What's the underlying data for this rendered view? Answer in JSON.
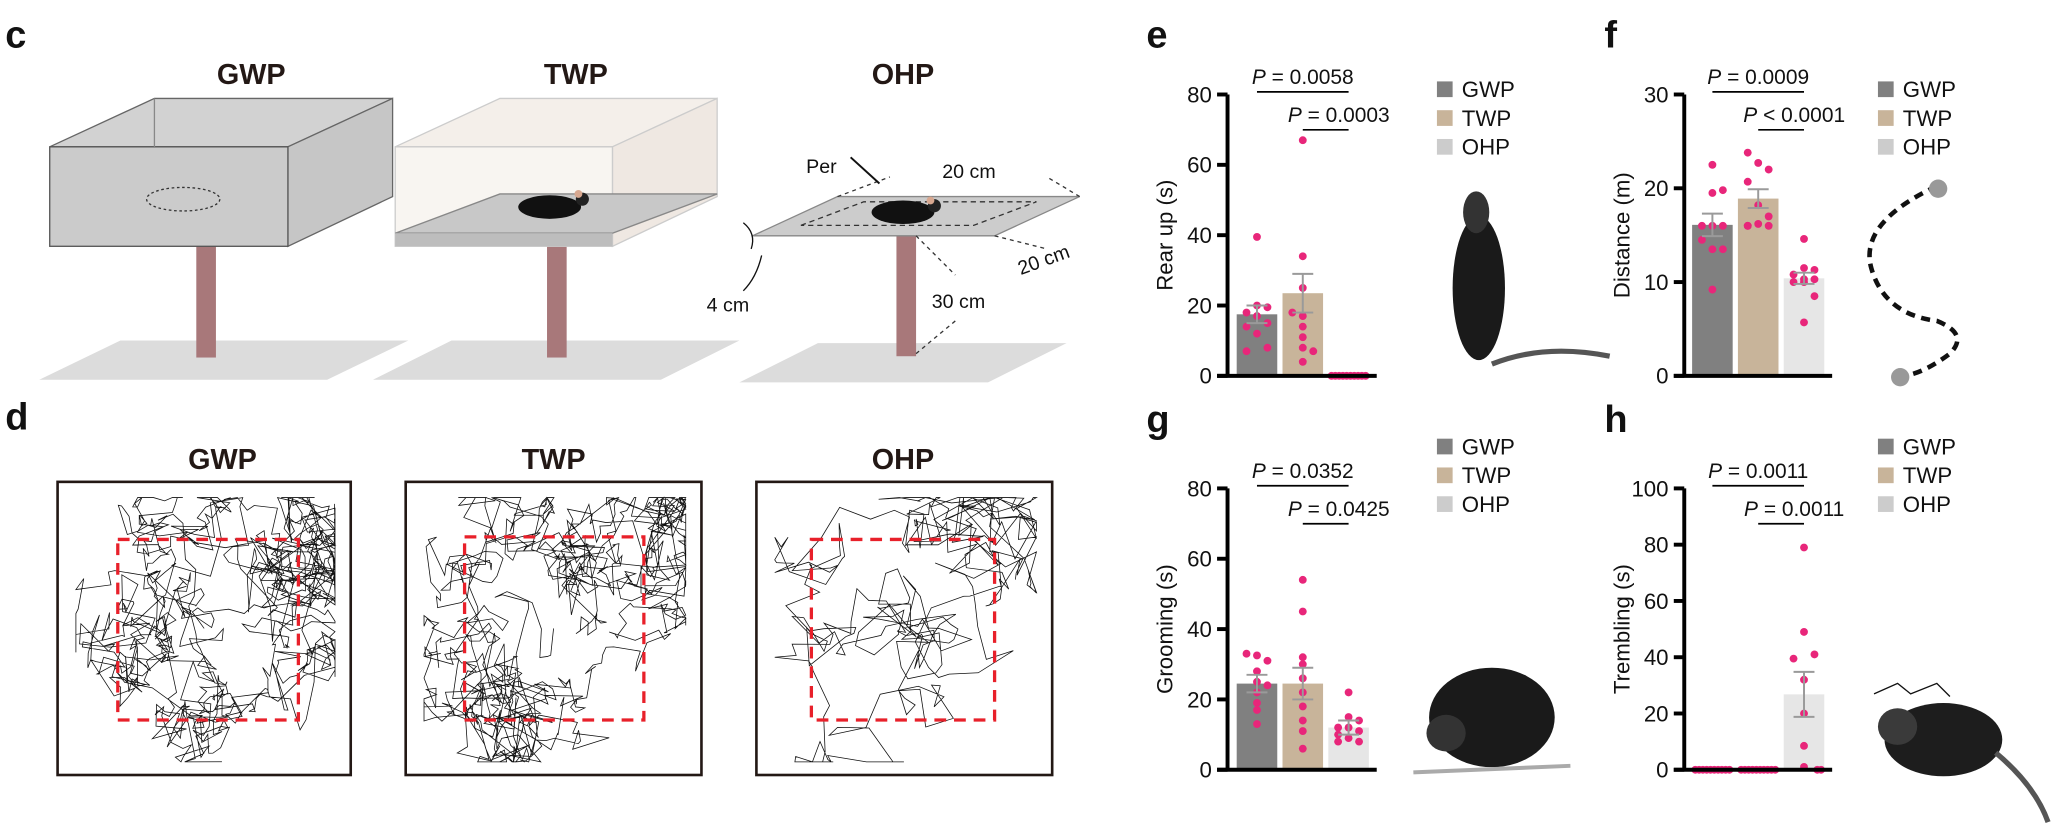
{
  "panel_labels": {
    "c": "c",
    "d": "d",
    "e": "e",
    "f": "f",
    "g": "g",
    "h": "h"
  },
  "panel_c": {
    "titles": [
      "GWP",
      "TWP",
      "OHP"
    ],
    "dimensions": {
      "per": "Per",
      "width": "20 cm",
      "depth": "20 cm",
      "edge": "4 cm",
      "height": "30 cm"
    }
  },
  "panel_d": {
    "titles": [
      "GWP",
      "TWP",
      "OHP"
    ]
  },
  "colors": {
    "GWP": "#808080",
    "TWP": "#c8b49a",
    "OHP": "#e6e6e6",
    "OHP_legend": "#cccccc",
    "dots": "#e8267a",
    "zone": "#e8202a",
    "error": "#9a9a9a"
  },
  "chart_data": [
    {
      "panel": "e",
      "type": "bar",
      "categories": [
        "GWP",
        "TWP",
        "OHP"
      ],
      "ylabel": "Rear up (s)",
      "ylim": [
        0,
        80
      ],
      "yticks": [
        0,
        20,
        40,
        60,
        80
      ],
      "legend": [
        "GWP",
        "TWP",
        "OHP"
      ],
      "legend_position": "top-right",
      "means": [
        17.5,
        23.5,
        0
      ],
      "sem": [
        2.5,
        5.5,
        0
      ],
      "points": [
        [
          39.5,
          20,
          19.5,
          18,
          17,
          15,
          14,
          12,
          8,
          7
        ],
        [
          67,
          34,
          25,
          18,
          17,
          14,
          11,
          8,
          7,
          4
        ],
        [
          0,
          0,
          0,
          0,
          0,
          0,
          0,
          0,
          0,
          0
        ]
      ],
      "comparisons": [
        {
          "pair": [
            "GWP",
            "OHP"
          ],
          "label": "P = 0.0058"
        },
        {
          "pair": [
            "TWP",
            "OHP"
          ],
          "label": "P = 0.0003"
        }
      ]
    },
    {
      "panel": "f",
      "type": "bar",
      "categories": [
        "GWP",
        "TWP",
        "OHP"
      ],
      "ylabel": "Distance (m)",
      "ylim": [
        0,
        30
      ],
      "yticks": [
        0,
        10,
        20,
        30
      ],
      "legend": [
        "GWP",
        "TWP",
        "OHP"
      ],
      "legend_position": "top-right",
      "means": [
        16.1,
        18.9,
        10.4
      ],
      "sem": [
        1.2,
        1.0,
        0.6
      ],
      "points": [
        [
          22.5,
          19.5,
          19.8,
          16,
          16,
          16,
          14.5,
          13.5,
          13.5,
          9.2
        ],
        [
          23.8,
          22.7,
          22,
          20.7,
          18.2,
          17,
          16,
          16.2,
          16,
          16
        ],
        [
          14.6,
          11.5,
          11.3,
          10.8,
          10.3,
          10.3,
          10,
          10,
          8.5,
          5.7
        ]
      ],
      "comparisons": [
        {
          "pair": [
            "GWP",
            "OHP"
          ],
          "label": "P = 0.0009"
        },
        {
          "pair": [
            "TWP",
            "OHP"
          ],
          "label": "P < 0.0001"
        }
      ]
    },
    {
      "panel": "g",
      "type": "bar",
      "categories": [
        "GWP",
        "TWP",
        "OHP"
      ],
      "ylabel": "Grooming (s)",
      "ylim": [
        0,
        80
      ],
      "yticks": [
        0,
        20,
        40,
        60,
        80
      ],
      "legend": [
        "GWP",
        "TWP",
        "OHP"
      ],
      "legend_position": "top-right",
      "means": [
        24.5,
        24.5,
        12
      ],
      "sem": [
        2.5,
        4.5,
        2
      ],
      "points": [
        [
          33,
          32.5,
          31,
          28,
          25,
          24,
          22,
          19,
          17,
          13
        ],
        [
          54,
          45,
          32,
          30,
          26,
          22,
          18,
          14,
          11,
          6
        ],
        [
          22,
          15,
          14,
          12,
          12,
          11,
          10,
          9,
          8,
          8
        ]
      ],
      "comparisons": [
        {
          "pair": [
            "GWP",
            "OHP"
          ],
          "label": "P = 0.0352"
        },
        {
          "pair": [
            "TWP",
            "OHP"
          ],
          "label": "P = 0.0425"
        }
      ]
    },
    {
      "panel": "h",
      "type": "bar",
      "categories": [
        "GWP",
        "TWP",
        "OHP"
      ],
      "ylabel": "Trembling (s)",
      "ylim": [
        0,
        100
      ],
      "yticks": [
        0,
        20,
        40,
        60,
        80,
        100
      ],
      "legend": [
        "GWP",
        "TWP",
        "OHP"
      ],
      "legend_position": "top-right",
      "means": [
        0,
        0,
        26.8
      ],
      "sem": [
        0,
        0,
        8
      ],
      "points": [
        [
          0,
          0,
          0,
          0,
          0,
          0,
          0,
          0,
          0,
          0
        ],
        [
          0,
          0,
          0,
          0,
          0,
          0,
          0,
          0,
          0,
          0
        ],
        [
          79,
          49,
          41,
          39.5,
          32,
          20,
          8.5,
          1,
          0,
          0
        ]
      ],
      "comparisons": [
        {
          "pair": [
            "GWP",
            "OHP"
          ],
          "label": "P = 0.0011"
        },
        {
          "pair": [
            "TWP",
            "OHP"
          ],
          "label": "P = 0.0011"
        }
      ]
    }
  ]
}
